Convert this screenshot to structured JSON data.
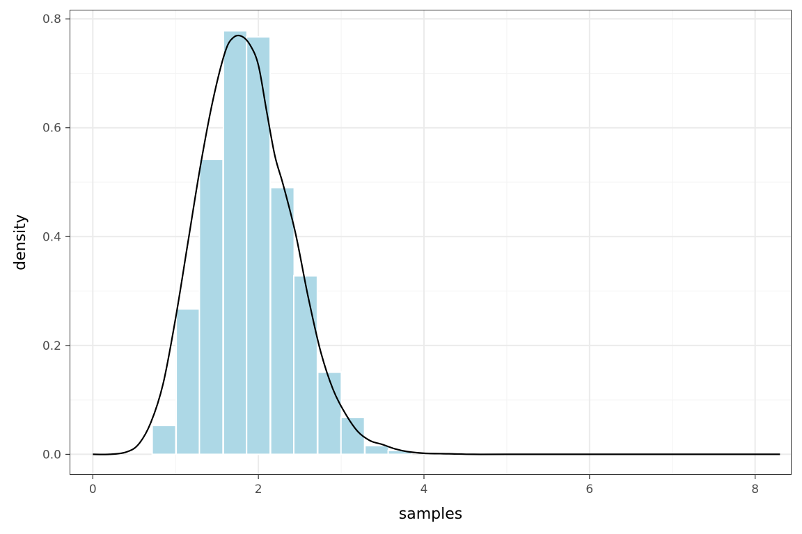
{
  "chart_data": {
    "type": "bar",
    "title": "",
    "xlabel": "samples",
    "ylabel": "density",
    "xlim": [
      -0.28,
      8.44
    ],
    "ylim": [
      -0.0378,
      0.8168
    ],
    "x_ticks": [
      0,
      2,
      4,
      6,
      8
    ],
    "x_tick_labels": [
      "0",
      "2",
      "4",
      "6",
      "8"
    ],
    "y_ticks": [
      0.0,
      0.2,
      0.4,
      0.6,
      0.8
    ],
    "y_tick_labels": [
      "0.0",
      "0.2",
      "0.4",
      "0.6",
      "0.8"
    ],
    "grid": true,
    "legend": "none",
    "histogram": {
      "binwidth": 0.285,
      "bin_centers": [
        0.86,
        1.15,
        1.43,
        1.72,
        2.0,
        2.29,
        2.57,
        2.86,
        3.14,
        3.43,
        3.71
      ],
      "values": [
        0.053,
        0.267,
        0.542,
        0.778,
        0.767,
        0.49,
        0.328,
        0.151,
        0.068,
        0.016,
        0.007
      ]
    },
    "density": {
      "x": [
        0.0,
        0.2,
        0.4,
        0.55,
        0.7,
        0.85,
        1.0,
        1.15,
        1.3,
        1.45,
        1.6,
        1.7,
        1.8,
        1.9,
        2.0,
        2.1,
        2.2,
        2.3,
        2.45,
        2.6,
        2.75,
        2.9,
        3.05,
        3.2,
        3.35,
        3.5,
        3.65,
        3.8,
        4.0,
        4.3,
        4.6,
        5.0,
        6.0,
        7.0,
        8.3
      ],
      "y": [
        0.0,
        0.0,
        0.004,
        0.018,
        0.058,
        0.13,
        0.25,
        0.39,
        0.53,
        0.65,
        0.74,
        0.766,
        0.768,
        0.752,
        0.715,
        0.63,
        0.548,
        0.495,
        0.405,
        0.29,
        0.19,
        0.12,
        0.075,
        0.042,
        0.025,
        0.018,
        0.01,
        0.005,
        0.002,
        0.001,
        0.0,
        0.0,
        0.0,
        0.0,
        0.0
      ]
    },
    "colors": {
      "bar_fill": "#add8e6",
      "bar_outline": "#ffffff",
      "density_line": "#000000",
      "grid_major": "#ebebeb",
      "grid_minor": "#f3f3f3",
      "panel_border": "#333333"
    }
  }
}
